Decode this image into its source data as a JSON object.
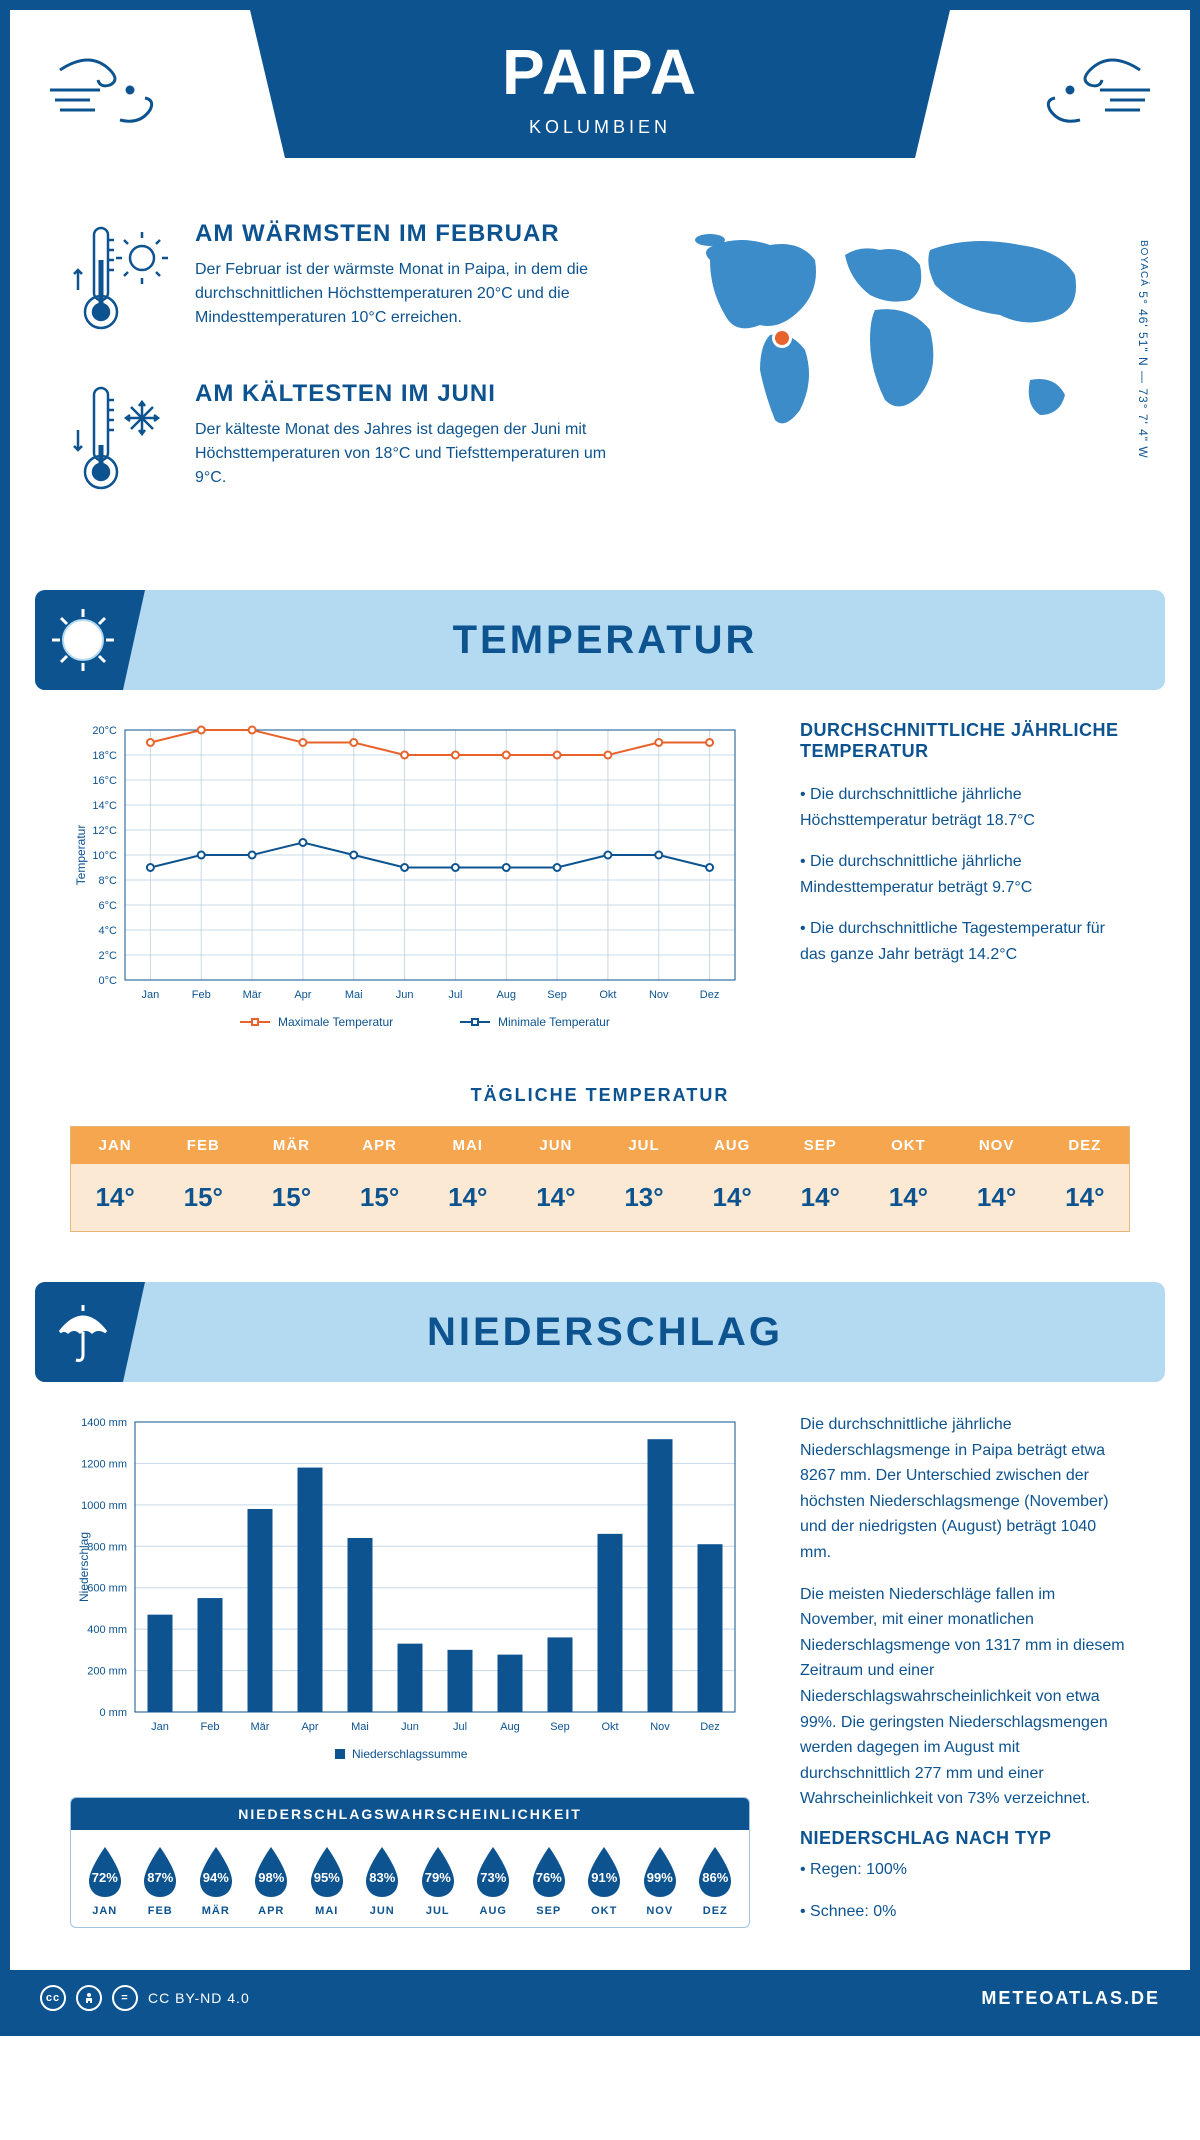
{
  "header": {
    "title": "PAIPA",
    "subtitle": "KOLUMBIEN"
  },
  "coords": {
    "text": "5° 46' 51\" N — 73° 7' 4\" W",
    "region": "BOYACÁ"
  },
  "intro": {
    "warmest": {
      "title": "AM WÄRMSTEN IM FEBRUAR",
      "text": "Der Februar ist der wärmste Monat in Paipa, in dem die durchschnittlichen Höchsttemperaturen 20°C und die Mindesttemperaturen 10°C erreichen."
    },
    "coldest": {
      "title": "AM KÄLTESTEN IM JUNI",
      "text": "Der kälteste Monat des Jahres ist dagegen der Juni mit Höchsttemperaturen von 18°C und Tiefsttemperaturen um 9°C."
    }
  },
  "sections": {
    "temperature_title": "TEMPERATUR",
    "precipitation_title": "NIEDERSCHLAG"
  },
  "temperature_chart": {
    "type": "line",
    "months": [
      "Jan",
      "Feb",
      "Mär",
      "Apr",
      "Mai",
      "Jun",
      "Jul",
      "Aug",
      "Sep",
      "Okt",
      "Nov",
      "Dez"
    ],
    "max_values": [
      19,
      20,
      20,
      19,
      19,
      18,
      18,
      18,
      18,
      18,
      19,
      19
    ],
    "min_values": [
      9,
      10,
      10,
      11,
      10,
      9,
      9,
      9,
      9,
      10,
      10,
      9
    ],
    "max_label": "Maximale Temperatur",
    "min_label": "Minimale Temperatur",
    "y_axis_label": "Temperatur",
    "ylim": [
      0,
      20
    ],
    "ytick_step": 2,
    "max_color": "#e8632c",
    "min_color": "#0d5390",
    "grid_color": "#c8d8e8",
    "background_color": "#ffffff",
    "line_width": 2,
    "marker": "circle"
  },
  "temperature_info": {
    "heading": "DURCHSCHNITTLICHE JÄHRLICHE TEMPERATUR",
    "p1": "• Die durchschnittliche jährliche Höchsttemperatur beträgt 18.7°C",
    "p2": "• Die durchschnittliche jährliche Mindesttemperatur beträgt 9.7°C",
    "p3": "• Die durchschnittliche Tagestemperatur für das ganze Jahr beträgt 14.2°C"
  },
  "daily_temp": {
    "title": "TÄGLICHE TEMPERATUR",
    "months": [
      "JAN",
      "FEB",
      "MÄR",
      "APR",
      "MAI",
      "JUN",
      "JUL",
      "AUG",
      "SEP",
      "OKT",
      "NOV",
      "DEZ"
    ],
    "values": [
      "14°",
      "15°",
      "15°",
      "15°",
      "14°",
      "14°",
      "13°",
      "14°",
      "14°",
      "14°",
      "14°",
      "14°"
    ],
    "header_bg": "#f5a64e",
    "cell_bg": "#fbe9d3",
    "text_color": "#0d5390"
  },
  "precipitation_chart": {
    "type": "bar",
    "months": [
      "Jan",
      "Feb",
      "Mär",
      "Apr",
      "Mai",
      "Jun",
      "Jul",
      "Aug",
      "Sep",
      "Okt",
      "Nov",
      "Dez"
    ],
    "values": [
      470,
      550,
      980,
      1180,
      840,
      330,
      300,
      277,
      360,
      860,
      1317,
      810
    ],
    "y_axis_label": "Niederschlag",
    "legend_label": "Niederschlagssumme",
    "ylim": [
      0,
      1400
    ],
    "ytick_step": 200,
    "bar_color": "#0d5390",
    "grid_color": "#c8d8e8",
    "background_color": "#ffffff",
    "bar_width": 0.5
  },
  "precipitation_info": {
    "p1": "Die durchschnittliche jährliche Niederschlagsmenge in Paipa beträgt etwa 8267 mm. Der Unterschied zwischen der höchsten Niederschlagsmenge (November) und der niedrigsten (August) beträgt 1040 mm.",
    "p2": "Die meisten Niederschläge fallen im November, mit einer monatlichen Niederschlagsmenge von 1317 mm in diesem Zeitraum und einer Niederschlagswahrscheinlichkeit von etwa 99%. Die geringsten Niederschlagsmengen werden dagegen im August mit durchschnittlich 277 mm und einer Wahrscheinlichkeit von 73% verzeichnet.",
    "type_heading": "NIEDERSCHLAG NACH TYP",
    "type_rain": "• Regen: 100%",
    "type_snow": "• Schnee: 0%"
  },
  "precipitation_probability": {
    "title": "NIEDERSCHLAGSWAHRSCHEINLICHKEIT",
    "months": [
      "JAN",
      "FEB",
      "MÄR",
      "APR",
      "MAI",
      "JUN",
      "JUL",
      "AUG",
      "SEP",
      "OKT",
      "NOV",
      "DEZ"
    ],
    "values": [
      "72%",
      "87%",
      "94%",
      "98%",
      "95%",
      "83%",
      "79%",
      "73%",
      "76%",
      "91%",
      "99%",
      "86%"
    ],
    "drop_color": "#0d5390"
  },
  "footer": {
    "license": "CC BY-ND 4.0",
    "site": "METEOATLAS.DE"
  },
  "colors": {
    "primary": "#0d5390",
    "light_blue": "#b4daf1",
    "map_blue": "#3b8cc9",
    "marker_red": "#e8632c"
  }
}
